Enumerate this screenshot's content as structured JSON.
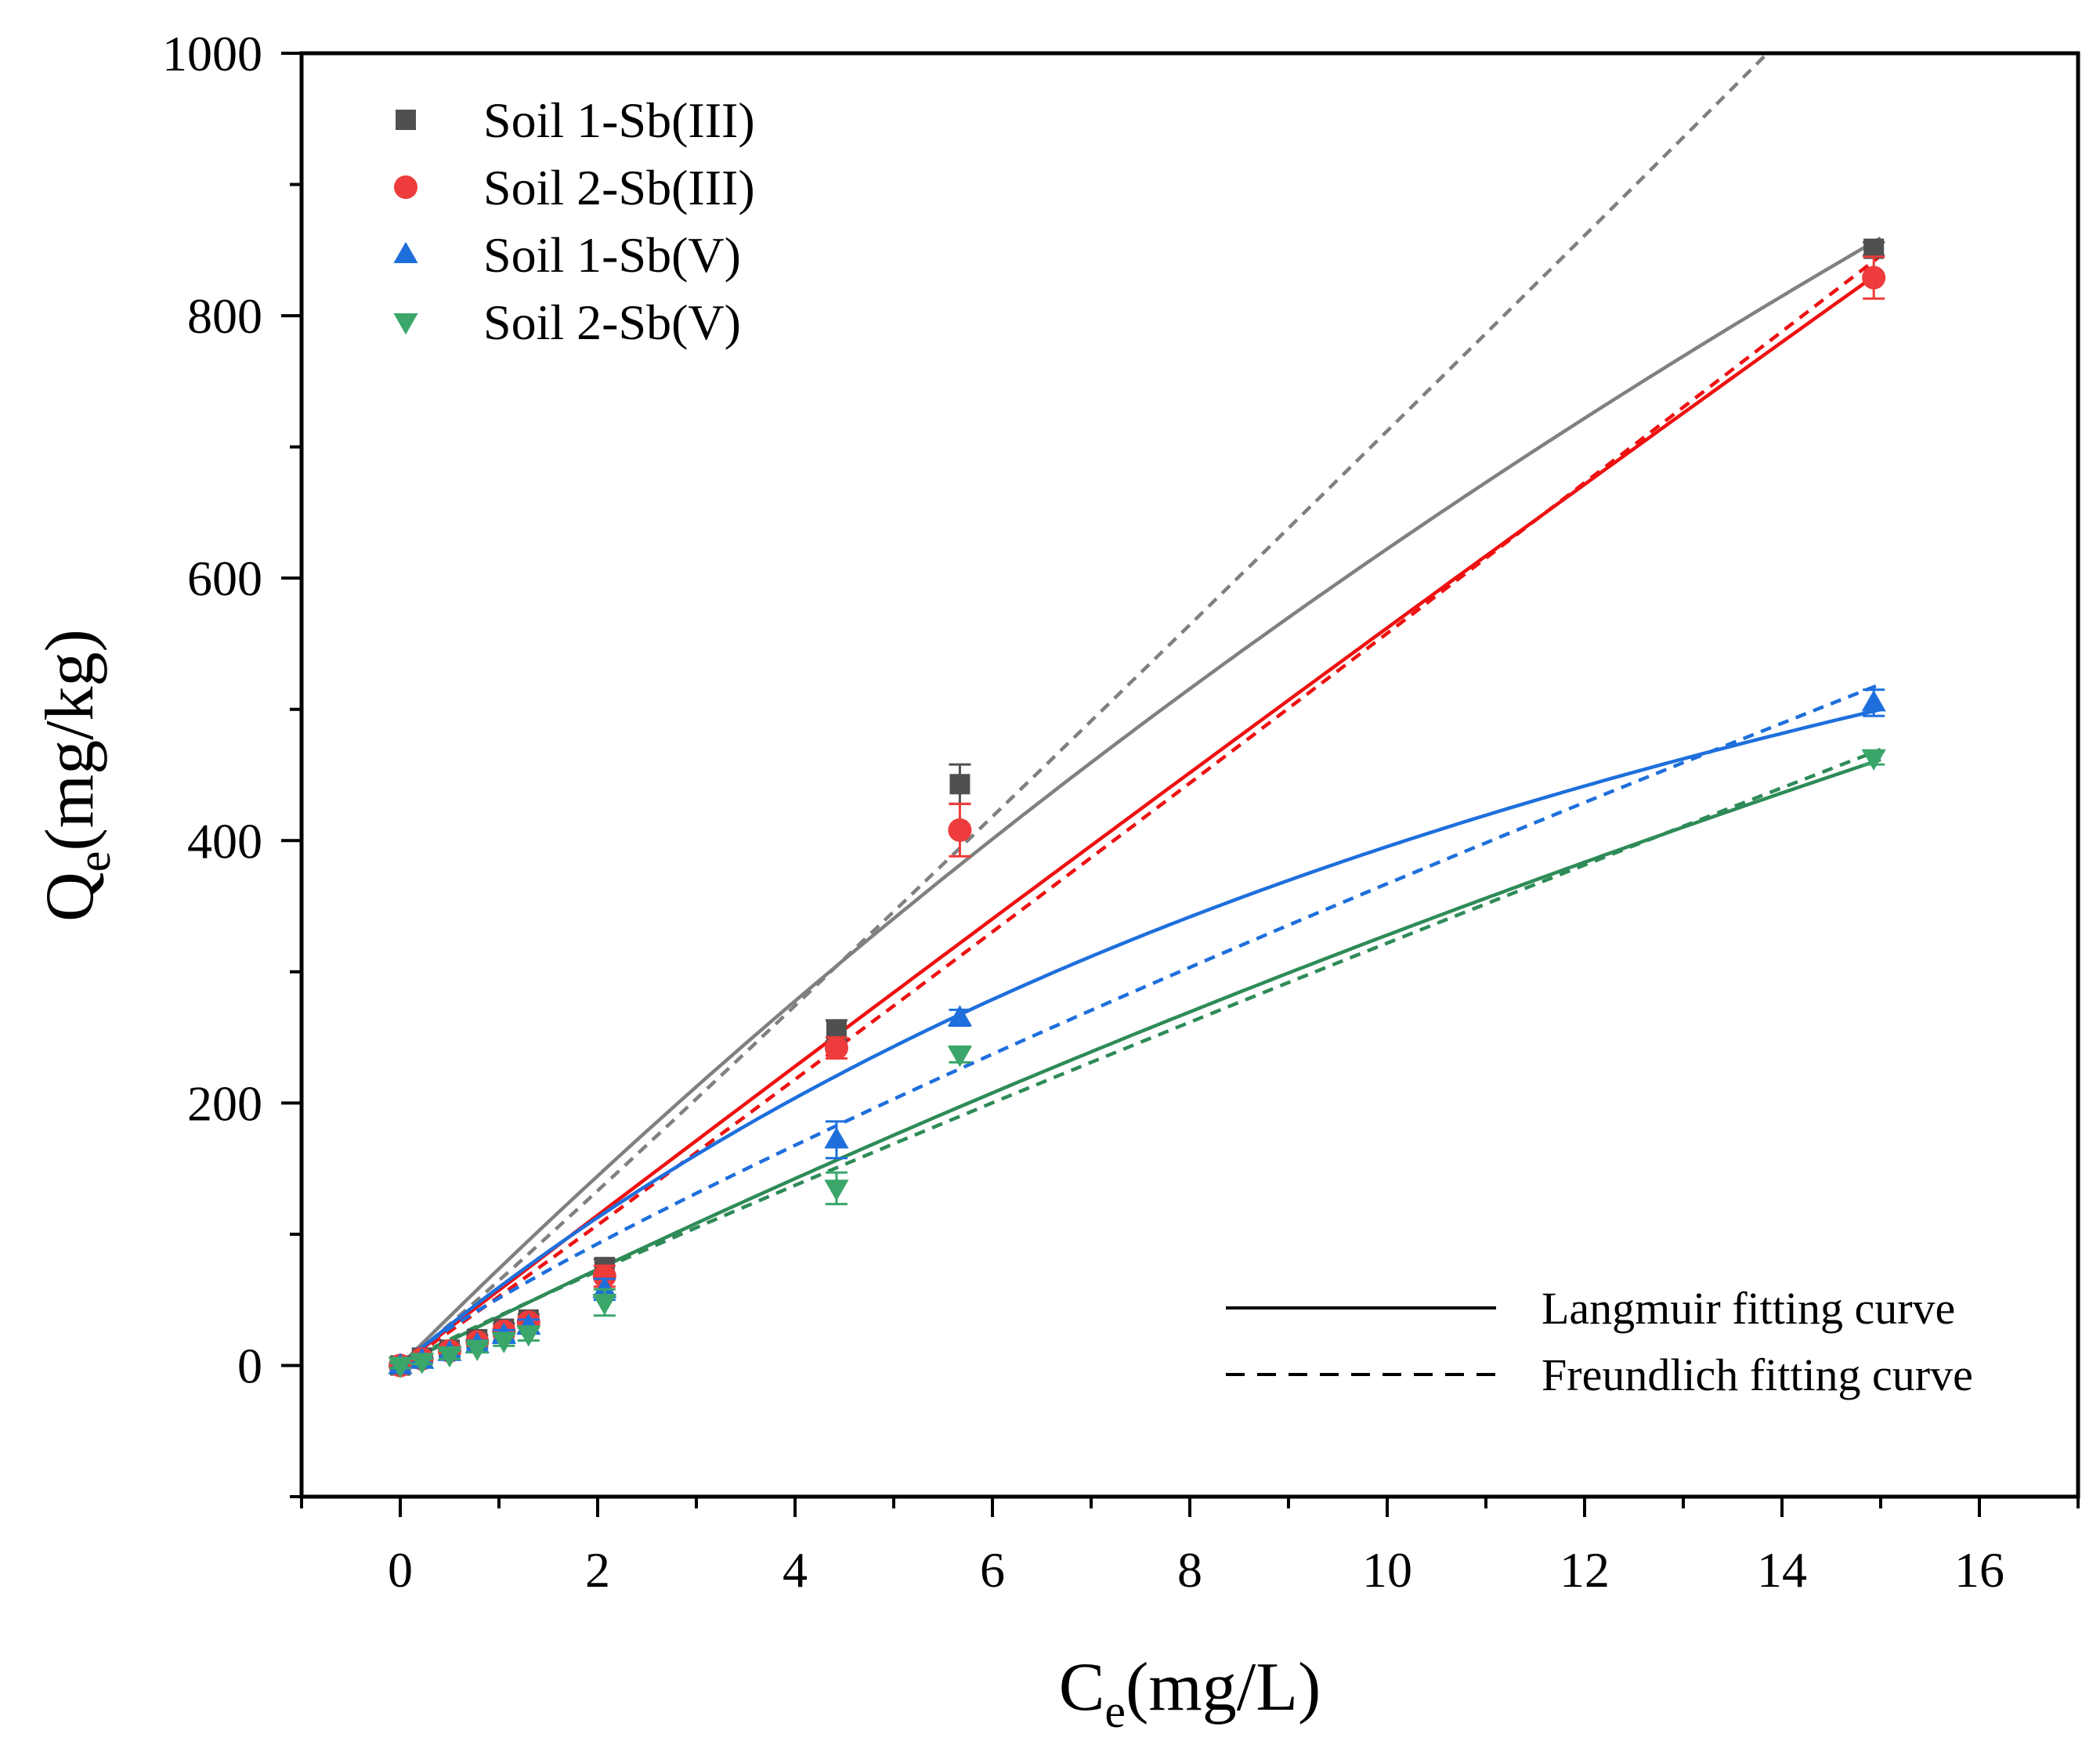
{
  "chart_data": {
    "type": "scatter",
    "xlabel": {
      "main": "C",
      "sub": "e",
      "rest": "(mg/L)"
    },
    "ylabel": {
      "main": "Q",
      "sub": "e",
      "rest": "(mg/kg)"
    },
    "xlim": [
      -1,
      17
    ],
    "ylim": [
      -100,
      1000
    ],
    "x_ticks": [
      0,
      2,
      4,
      6,
      8,
      10,
      12,
      14,
      16
    ],
    "x_tick_labels": [
      "0",
      "2",
      "4",
      "6",
      "8",
      "10",
      "12",
      "14",
      "16"
    ],
    "x_minor_ticks": [
      -1,
      1,
      3,
      5,
      7,
      9,
      11,
      13,
      15,
      17
    ],
    "y_ticks": [
      0,
      200,
      400,
      600,
      800,
      1000
    ],
    "y_tick_labels": [
      "0",
      "200",
      "400",
      "600",
      "800",
      "1000"
    ],
    "y_minor_ticks": [
      -100,
      100,
      300,
      500,
      700,
      900
    ],
    "grid": false,
    "legend_position": "top-left",
    "series": [
      {
        "name": "Soil 1-Sb(III)",
        "marker": "square",
        "color": "#505050",
        "fit_color": "#808080",
        "x": [
          0,
          0.22,
          0.5,
          0.78,
          1.05,
          1.3,
          2.07,
          4.42,
          5.67,
          14.93
        ],
        "y": [
          0,
          6,
          12,
          20,
          28,
          35,
          75,
          255,
          443,
          851
        ],
        "err": [
          2,
          2,
          3,
          3,
          4,
          4,
          6,
          8,
          15,
          5
        ],
        "langmuir": {
          "qmax": 3600,
          "K": 0.0209
        },
        "freundlich": {
          "KF": 64.7,
          "n": 0.96
        }
      },
      {
        "name": "Soil 2-Sb(III)",
        "marker": "circle",
        "color": "#ee3b3b",
        "fit_color": "#ee1111",
        "x": [
          0,
          0.22,
          0.5,
          0.78,
          1.05,
          1.3,
          2.07,
          4.42,
          5.67,
          14.93
        ],
        "y": [
          0,
          5,
          11,
          18,
          26,
          33,
          68,
          242,
          408,
          829
        ],
        "err": [
          2,
          2,
          3,
          3,
          4,
          4,
          8,
          8,
          20,
          16
        ],
        "langmuir": {
          "qmax": 25000,
          "K": 0.0023
        },
        "freundlich": {
          "KF": 52.6,
          "n": 0.975
        }
      },
      {
        "name": "Soil 1-Sb(V)",
        "marker": "triangle-up",
        "color": "#1e6fdc",
        "fit_color": "#1e6fdc",
        "x": [
          0,
          0.22,
          0.5,
          0.78,
          1.05,
          1.3,
          2.07,
          4.42,
          5.67,
          14.93
        ],
        "y": [
          0,
          4,
          10,
          16,
          23,
          30,
          58,
          172,
          265,
          505
        ],
        "err": [
          2,
          2,
          3,
          3,
          4,
          5,
          8,
          14,
          6,
          10
        ],
        "langmuir": {
          "qmax": 1060,
          "K": 0.0595
        },
        "freundlich": {
          "KF": 51.3,
          "n": 1.17
        }
      },
      {
        "name": "Soil 2-Sb(V)",
        "marker": "triangle-down",
        "color": "#3aa66a",
        "fit_color": "#2e8b57",
        "x": [
          0,
          0.22,
          0.5,
          0.78,
          1.05,
          1.3,
          2.07,
          4.42,
          5.67,
          14.93
        ],
        "y": [
          0,
          3,
          8,
          13,
          19,
          24,
          48,
          135,
          237,
          463
        ],
        "err": [
          2,
          2,
          3,
          3,
          4,
          5,
          10,
          12,
          6,
          5
        ],
        "langmuir": {
          "qmax": 2500,
          "K": 0.0151
        },
        "freundlich": {
          "KF": 37.8,
          "n": 1.075
        }
      }
    ],
    "line_legend": [
      {
        "label": "Langmuir fitting curve",
        "style": "solid"
      },
      {
        "label": "Freundlich fitting curve",
        "style": "dashed"
      }
    ]
  }
}
